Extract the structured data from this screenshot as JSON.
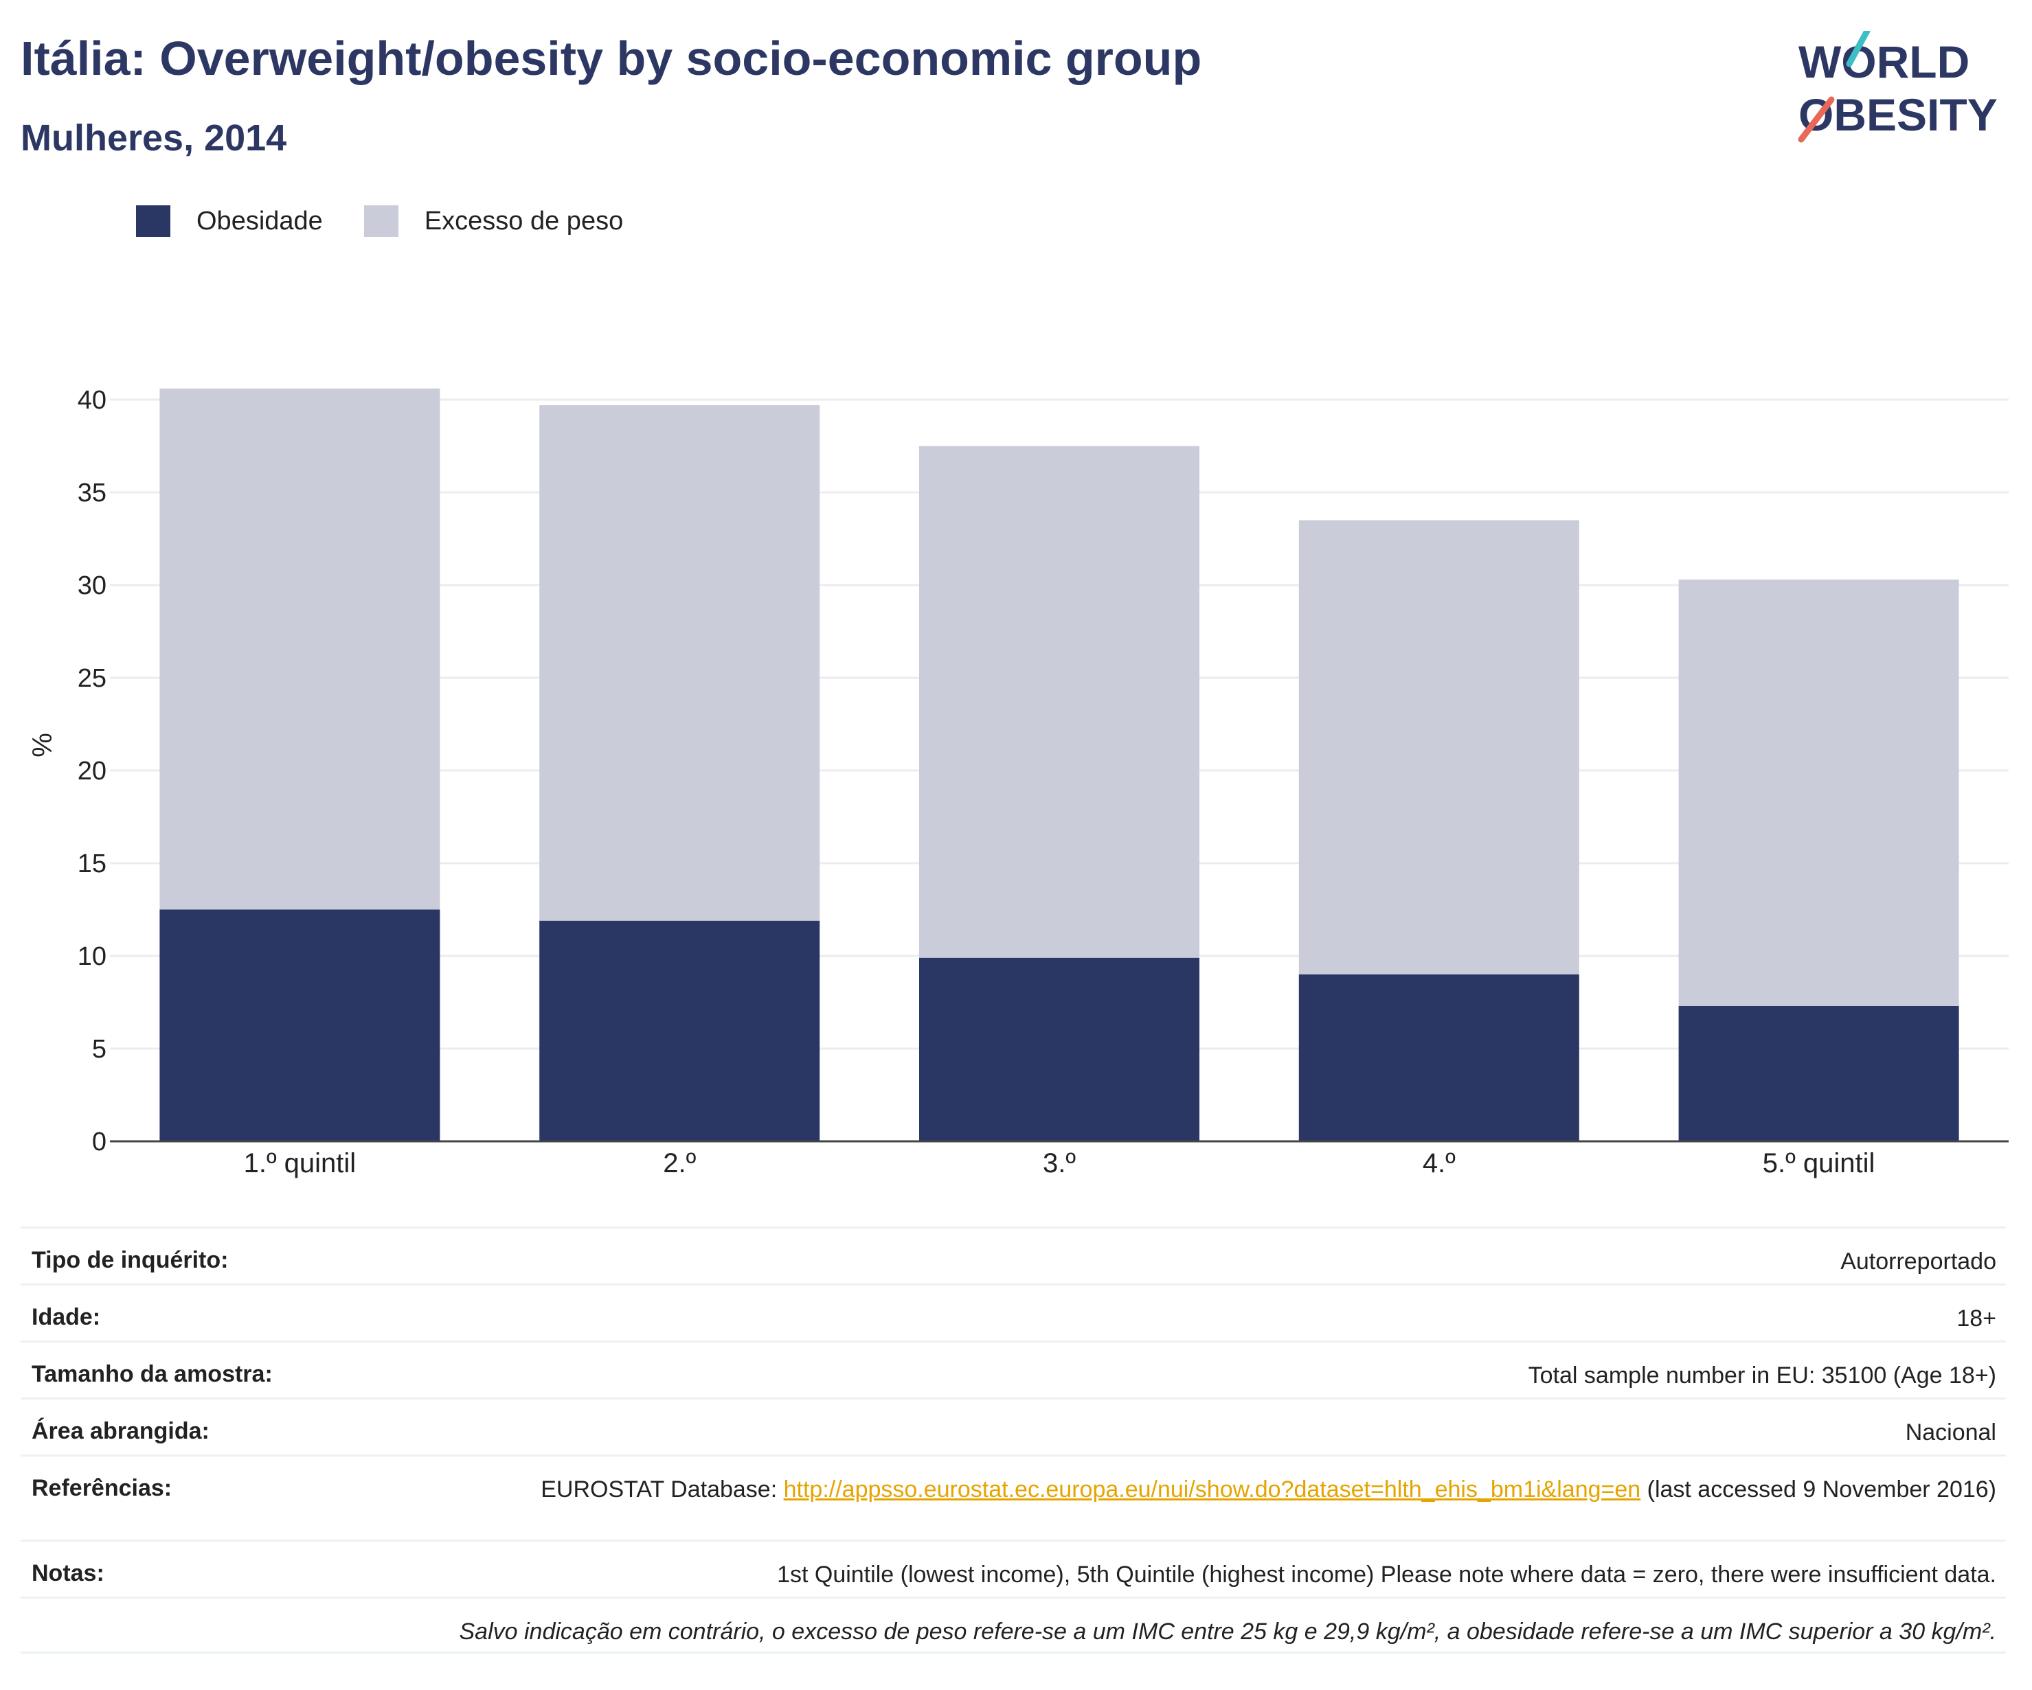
{
  "title": "Itália: Overweight/obesity by socio-economic group",
  "subtitle": "Mulheres, 2014",
  "logo": {
    "line1": "WORLD",
    "line2": "OBESITY",
    "accent_teal": "#3dbdc4",
    "accent_red": "#e8685a",
    "text_color": "#2c3763"
  },
  "legend": [
    {
      "label": "Obesidade",
      "color": "#2a3663"
    },
    {
      "label": "Excesso de peso",
      "color": "#cacdd9"
    }
  ],
  "chart_data": {
    "type": "bar",
    "stacked": true,
    "categories": [
      "1.º quintil",
      "2.º",
      "3.º",
      "4.º",
      "5.º quintil"
    ],
    "series": [
      {
        "name": "Obesidade",
        "values": [
          12.5,
          11.9,
          9.9,
          9.0,
          7.3
        ],
        "color": "#2a3663"
      },
      {
        "name": "Excesso de peso",
        "values": [
          28.1,
          27.8,
          27.6,
          24.5,
          23.0
        ],
        "color": "#cacdd9"
      }
    ],
    "ylabel": "%",
    "ylim": [
      0,
      43
    ],
    "yticks": [
      "0",
      "5",
      "10",
      "15",
      "20",
      "25",
      "30",
      "35",
      "40"
    ],
    "grid": true,
    "legend_position": "top-left"
  },
  "meta": {
    "survey_type": {
      "label": "Tipo de inquérito:",
      "value": "Autorreportado"
    },
    "age": {
      "label": "Idade:",
      "value": "18+"
    },
    "sample_size": {
      "label": "Tamanho da amostra:",
      "value": "Total sample number in EU: 35100 (Age 18+)"
    },
    "area": {
      "label": "Área abrangida:",
      "value": "Nacional"
    },
    "references": {
      "label": "Referências:",
      "prefix": "EUROSTAT Database: ",
      "link": "http://appsso.eurostat.ec.europa.eu/nui/show.do?dataset=hlth_ehis_bm1i&lang=en",
      "suffix": " (last accessed 9 November 2016)"
    },
    "notes": {
      "label": "Notas:",
      "value": "1st Quintile (lowest income), 5th Quintile (highest income) Please note where data = zero, there were insufficient data."
    },
    "footnote": "Salvo indicação em contrário, o excesso de peso refere-se a um IMC entre 25 kg e 29,9 kg/m², a obesidade refere-se a um IMC superior a 30 kg/m²."
  }
}
